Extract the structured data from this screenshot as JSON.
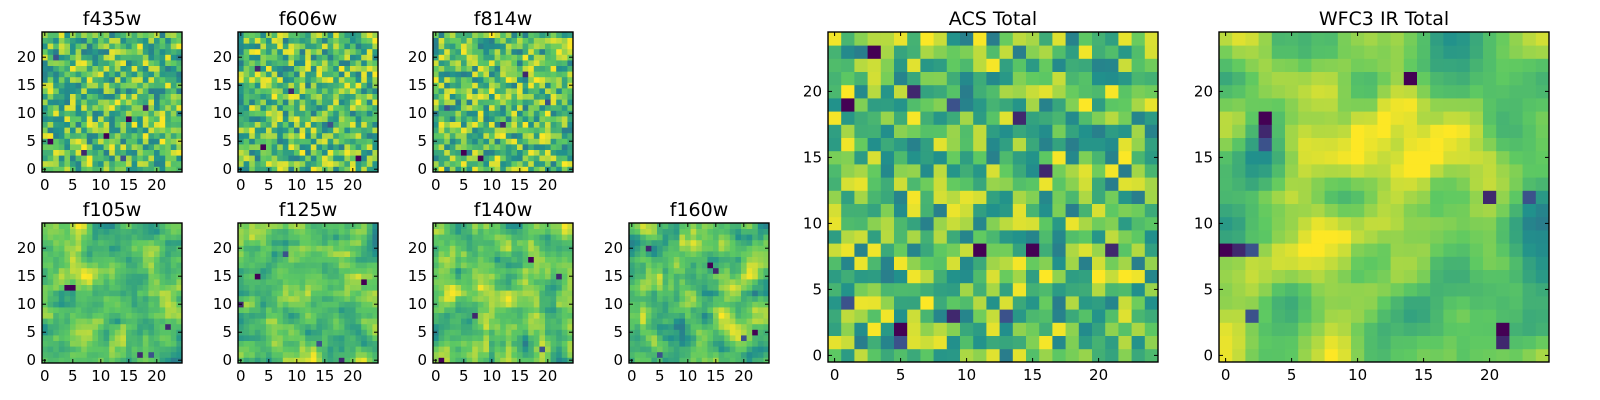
{
  "figure": {
    "description_type": "image grid of 25x25 pixel cutouts rendered with the viridis colormap",
    "colormap": [
      "#440154",
      "#3b528b",
      "#21918c",
      "#5ec962",
      "#fde725"
    ]
  },
  "chart_data": [
    {
      "type": "heatmap",
      "title": "f435w",
      "grid_size": 25,
      "xlim": [
        0,
        24
      ],
      "ylim": [
        0,
        24
      ],
      "xticks": [
        0,
        5,
        10,
        15,
        20
      ],
      "yticks": [
        0,
        5,
        10,
        15,
        20
      ],
      "texture": "fine",
      "seed": 11,
      "dark_pixels": [
        [
          1,
          5
        ],
        [
          7,
          3
        ],
        [
          14,
          2
        ],
        [
          15,
          9
        ],
        [
          18,
          11
        ],
        [
          2,
          20
        ],
        [
          11,
          6
        ]
      ]
    },
    {
      "type": "heatmap",
      "title": "f606w",
      "grid_size": 25,
      "xlim": [
        0,
        24
      ],
      "ylim": [
        0,
        24
      ],
      "xticks": [
        0,
        5,
        10,
        15,
        20
      ],
      "yticks": [
        0,
        5,
        10,
        15,
        20
      ],
      "texture": "fine",
      "seed": 23,
      "dark_pixels": [
        [
          4,
          4
        ],
        [
          9,
          14
        ],
        [
          16,
          8
        ],
        [
          21,
          2
        ],
        [
          3,
          18
        ]
      ]
    },
    {
      "type": "heatmap",
      "title": "f814w",
      "grid_size": 25,
      "xlim": [
        0,
        24
      ],
      "ylim": [
        0,
        24
      ],
      "xticks": [
        0,
        5,
        10,
        15,
        20
      ],
      "yticks": [
        0,
        5,
        10,
        15,
        20
      ],
      "texture": "fine",
      "seed": 37,
      "dark_pixels": [
        [
          5,
          3
        ],
        [
          12,
          8
        ],
        [
          20,
          12
        ],
        [
          8,
          2
        ],
        [
          16,
          17
        ],
        [
          2,
          11
        ]
      ]
    },
    {
      "type": "heatmap",
      "title": "f105w",
      "grid_size": 25,
      "xlim": [
        0,
        24
      ],
      "ylim": [
        0,
        24
      ],
      "xticks": [
        0,
        5,
        10,
        15,
        20
      ],
      "yticks": [
        0,
        5,
        10,
        15,
        20
      ],
      "texture": "smooth",
      "seed": 41,
      "dark_pixels": [
        [
          4,
          13
        ],
        [
          17,
          1
        ],
        [
          19,
          1
        ],
        [
          5,
          13
        ],
        [
          22,
          6
        ]
      ]
    },
    {
      "type": "heatmap",
      "title": "f125w",
      "grid_size": 25,
      "xlim": [
        0,
        24
      ],
      "ylim": [
        0,
        24
      ],
      "xticks": [
        0,
        5,
        10,
        15,
        20
      ],
      "yticks": [
        0,
        5,
        10,
        15,
        20
      ],
      "texture": "smooth",
      "seed": 53,
      "dark_pixels": [
        [
          3,
          15
        ],
        [
          0,
          10
        ],
        [
          14,
          3
        ],
        [
          22,
          14
        ],
        [
          18,
          0
        ],
        [
          8,
          19
        ]
      ]
    },
    {
      "type": "heatmap",
      "title": "f140w",
      "grid_size": 25,
      "xlim": [
        0,
        24
      ],
      "ylim": [
        0,
        24
      ],
      "xticks": [
        0,
        5,
        10,
        15,
        20
      ],
      "yticks": [
        0,
        5,
        10,
        15,
        20
      ],
      "texture": "smooth",
      "seed": 67,
      "dark_pixels": [
        [
          17,
          18
        ],
        [
          22,
          15
        ],
        [
          19,
          2
        ],
        [
          1,
          0
        ],
        [
          7,
          8
        ]
      ]
    },
    {
      "type": "heatmap",
      "title": "f160w",
      "grid_size": 25,
      "xlim": [
        0,
        24
      ],
      "ylim": [
        0,
        24
      ],
      "xticks": [
        0,
        5,
        10,
        15,
        20
      ],
      "yticks": [
        0,
        5,
        10,
        15,
        20
      ],
      "texture": "smooth",
      "seed": 79,
      "dark_pixels": [
        [
          14,
          17
        ],
        [
          15,
          16
        ],
        [
          20,
          4
        ],
        [
          22,
          5
        ],
        [
          3,
          20
        ],
        [
          5,
          1
        ]
      ]
    },
    {
      "type": "heatmap",
      "title": "ACS Total",
      "grid_size": 25,
      "xlim": [
        0,
        24
      ],
      "ylim": [
        0,
        24
      ],
      "xticks": [
        0,
        5,
        10,
        15,
        20
      ],
      "yticks": [
        0,
        5,
        10,
        15,
        20
      ],
      "texture": "blocky",
      "seed": 97,
      "dark_pixels": [
        [
          3,
          23
        ],
        [
          6,
          20
        ],
        [
          9,
          19
        ],
        [
          1,
          19
        ],
        [
          14,
          18
        ],
        [
          5,
          1
        ],
        [
          5,
          2
        ],
        [
          9,
          3
        ],
        [
          13,
          3
        ],
        [
          11,
          8
        ],
        [
          21,
          8
        ],
        [
          1,
          4
        ],
        [
          15,
          8
        ],
        [
          16,
          14
        ]
      ]
    },
    {
      "type": "heatmap",
      "title": "WFC3 IR Total",
      "grid_size": 25,
      "xlim": [
        0,
        24
      ],
      "ylim": [
        0,
        24
      ],
      "xticks": [
        0,
        5,
        10,
        15,
        20
      ],
      "yticks": [
        0,
        5,
        10,
        15,
        20
      ],
      "texture": "broad",
      "seed": 113,
      "dark_pixels": [
        [
          3,
          18
        ],
        [
          3,
          17
        ],
        [
          3,
          16
        ],
        [
          0,
          8
        ],
        [
          1,
          8
        ],
        [
          2,
          8
        ],
        [
          14,
          21
        ],
        [
          20,
          12
        ],
        [
          23,
          12
        ],
        [
          21,
          2
        ],
        [
          21,
          1
        ],
        [
          2,
          3
        ]
      ],
      "bright_center": [
        12,
        13
      ]
    }
  ]
}
